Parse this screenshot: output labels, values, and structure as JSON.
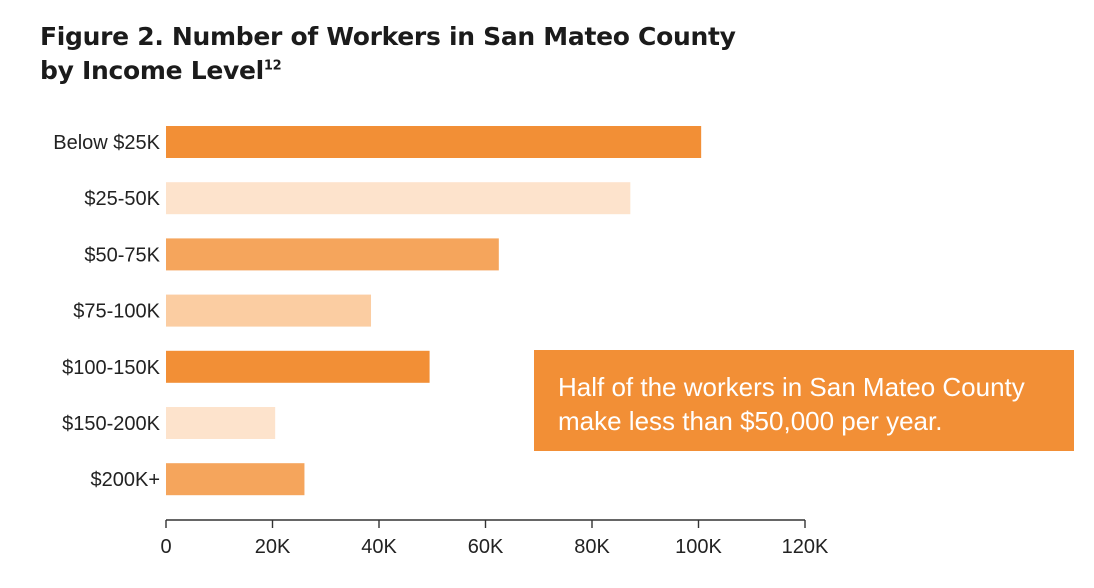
{
  "figure": {
    "title_line1": "Figure 2. Number of Workers in San Mateo County",
    "title_line2": "by Income Level",
    "footnote": "12"
  },
  "callout": {
    "line1": "Half of the workers in San Mateo County",
    "line2": "make less than $50,000 per year."
  },
  "chart_data": {
    "type": "bar",
    "orientation": "horizontal",
    "title": "Figure 2. Number of Workers in San Mateo County by Income Level",
    "categories": [
      "Below $25K",
      "$25-50K",
      "$50-75K",
      "$75-100K",
      "$100-150K",
      "$150-200K",
      "$200K+"
    ],
    "values": [
      100500,
      87200,
      62500,
      38500,
      49500,
      20500,
      26000
    ],
    "colors": [
      "#f28f36",
      "#fde3cc",
      "#f5a55c",
      "#fbcda2",
      "#f28f36",
      "#fde3cc",
      "#f5a55c"
    ],
    "xlim": [
      0,
      120000
    ],
    "xticks": [
      0,
      20000,
      40000,
      60000,
      80000,
      100000,
      120000
    ],
    "xtick_labels": [
      "0",
      "20K",
      "40K",
      "60K",
      "80K",
      "100K",
      "120K"
    ],
    "xlabel": "",
    "ylabel": "",
    "grid": false,
    "legend": "none"
  }
}
